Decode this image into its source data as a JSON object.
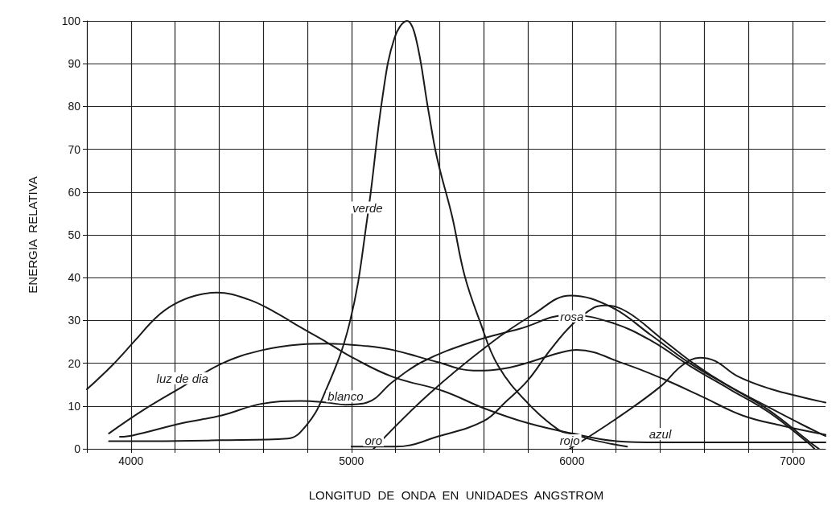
{
  "chart_data": {
    "type": "line",
    "xlabel": "LONGITUD  DE  ONDA  EN  UNIDADES  ANGSTROM",
    "ylabel": "ENERGIA  RELATIVA",
    "xlim": [
      3800,
      7150
    ],
    "ylim": [
      0,
      100
    ],
    "xticks": [
      {
        "value": 3800,
        "label": null
      },
      {
        "value": 4000,
        "label": "4000"
      },
      {
        "value": 4200,
        "label": null
      },
      {
        "value": 4400,
        "label": null
      },
      {
        "value": 4600,
        "label": null
      },
      {
        "value": 4800,
        "label": null
      },
      {
        "value": 5000,
        "label": "5000"
      },
      {
        "value": 5200,
        "label": null
      },
      {
        "value": 5400,
        "label": null
      },
      {
        "value": 5600,
        "label": null
      },
      {
        "value": 5800,
        "label": null
      },
      {
        "value": 6000,
        "label": "6000"
      },
      {
        "value": 6200,
        "label": null
      },
      {
        "value": 6400,
        "label": null
      },
      {
        "value": 6600,
        "label": null
      },
      {
        "value": 6800,
        "label": null
      },
      {
        "value": 7000,
        "label": "7000"
      }
    ],
    "yticks": [
      0,
      10,
      20,
      30,
      40,
      50,
      60,
      70,
      80,
      90,
      100
    ],
    "grid": true,
    "legend": false,
    "marker": "none",
    "line_style": "solid",
    "series": [
      {
        "name": "azul",
        "color": "#1a1a1a",
        "x": [
          3800,
          3911,
          4018,
          4114,
          4197,
          4293,
          4390,
          4533,
          4651,
          4769,
          4891,
          5009,
          5188,
          5417,
          5600,
          5800,
          6000,
          6200,
          6400,
          6800,
          7150
        ],
        "values": [
          13.9,
          19.3,
          25.3,
          30.7,
          33.8,
          35.8,
          36.5,
          34.9,
          32,
          28.4,
          24.8,
          21.2,
          16.8,
          13.5,
          9.5,
          6,
          3.6,
          1.8,
          1.5,
          1.5,
          1.5
        ]
      },
      {
        "name": "luz de dia",
        "color": "#1a1a1a",
        "x": [
          3900,
          4054,
          4233,
          4411,
          4590,
          4769,
          4891,
          5070,
          5188,
          5388,
          5553,
          5717,
          5943,
          6021,
          6236,
          6415,
          6594,
          6773,
          6952,
          7150
        ],
        "values": [
          3.6,
          9,
          14.5,
          19.9,
          23,
          24.4,
          24.6,
          24,
          23.1,
          20.3,
          18.3,
          19,
          22.4,
          23.1,
          19.9,
          16.3,
          12.1,
          7.8,
          5.4,
          3.3
        ]
      },
      {
        "name": "blanco",
        "color": "#1a1a1a",
        "x": [
          3950,
          4007,
          4233,
          4411,
          4590,
          4769,
          4891,
          4973,
          5070,
          5188,
          5320,
          5553,
          5760,
          5986,
          6179,
          6358,
          6537,
          6716,
          6894,
          7073,
          7100
        ],
        "values": [
          2.8,
          3.1,
          6,
          7.8,
          10.5,
          11.2,
          10.8,
          10.3,
          10.8,
          15.7,
          20.3,
          25.1,
          28,
          31.3,
          29.5,
          25.3,
          19.3,
          13.9,
          8.5,
          1.3,
          0
        ]
      },
      {
        "name": "verde",
        "color": "#1a1a1a",
        "x": [
          3900,
          4100,
          4400,
          4712,
          4794,
          4870,
          4991,
          5073,
          5141,
          5195,
          5252,
          5292,
          5349,
          5388,
          5456,
          5513,
          5581,
          5664,
          5803,
          5943,
          6000,
          6100,
          6250
        ],
        "values": [
          1.8,
          1.8,
          2,
          2.4,
          5.4,
          12,
          29.3,
          54.4,
          82.3,
          96,
          100,
          96,
          79,
          68,
          54.4,
          40.5,
          30,
          19.5,
          10.5,
          4.3,
          3.5,
          2,
          0.5
        ]
      },
      {
        "name": "oro",
        "color": "#1a1a1a",
        "x": [
          5100,
          5349,
          5624,
          5821,
          5993,
          6179,
          6358,
          6537,
          6716,
          6894,
          7073,
          7120
        ],
        "values": [
          0,
          12.7,
          24.4,
          31.3,
          35.8,
          33.1,
          26.6,
          19.9,
          14.5,
          9,
          1.8,
          0
        ]
      },
      {
        "name": "rosa",
        "color": "#1a1a1a",
        "x": [
          5000,
          5200,
          5400,
          5600,
          5700,
          5800,
          5900,
          6000,
          6100,
          6150,
          6250,
          6400,
          6550,
          6700,
          6900,
          7050,
          7150
        ],
        "values": [
          0.5,
          0.5,
          3,
          6.5,
          11,
          16,
          23,
          29,
          33,
          33.5,
          32,
          26,
          20,
          15,
          9.5,
          5.5,
          3
        ]
      },
      {
        "name": "rojo",
        "color": "#1a1a1a",
        "x": [
          5990,
          6200,
          6400,
          6500,
          6580,
          6650,
          6750,
          6900,
          7050,
          7150
        ],
        "values": [
          0,
          7,
          14.5,
          19.5,
          21.3,
          20.5,
          17,
          14,
          12,
          10.8
        ]
      }
    ]
  }
}
